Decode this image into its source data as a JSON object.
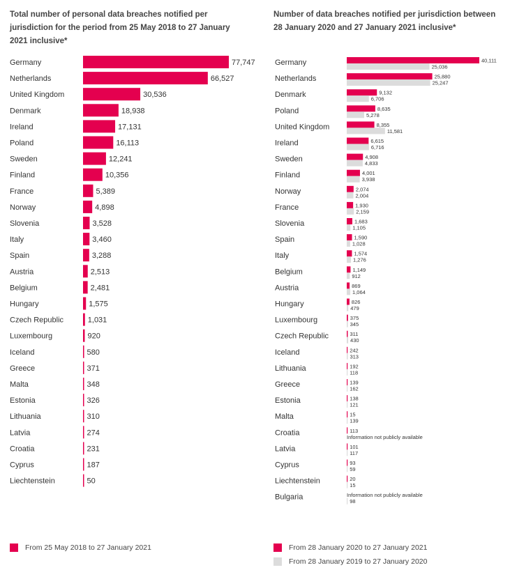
{
  "colors": {
    "pink": "#e4004f",
    "grey": "#dcdcdc",
    "text": "#333333"
  },
  "left_title": "Total number of personal data breaches notified per jurisdiction for the period from 25 May 2018 to 27 January 2021 inclusive*",
  "right_title": "Number of data breaches notified per jurisdiction between 28 January 2020 and 27 January 2021 inclusive*",
  "legend_left": "From 25 May 2018 to 27 January 2021",
  "legend_right_1": "From 28 January 2020 to 27 January 2021",
  "legend_right_2": "From 28 January 2019 to 27 January 2020",
  "chart_data": [
    {
      "type": "bar",
      "orientation": "horizontal",
      "title": "Total number of personal data breaches notified per jurisdiction for the period from 25 May 2018 to 27 January 2021 inclusive*",
      "categories": [
        "Germany",
        "Netherlands",
        "United Kingdom",
        "Denmark",
        "Ireland",
        "Poland",
        "Sweden",
        "Finland",
        "France",
        "Norway",
        "Slovenia",
        "Italy",
        "Spain",
        "Austria",
        "Belgium",
        "Hungary",
        "Czech Republic",
        "Luxembourg",
        "Iceland",
        "Greece",
        "Malta",
        "Estonia",
        "Lithuania",
        "Latvia",
        "Croatia",
        "Cyprus",
        "Liechtenstein"
      ],
      "series": [
        {
          "name": "From 25 May 2018 to 27 January 2021",
          "values": [
            77747,
            66527,
            30536,
            18938,
            17131,
            16113,
            12241,
            10356,
            5389,
            4898,
            3528,
            3460,
            3288,
            2513,
            2481,
            1575,
            1031,
            920,
            580,
            371,
            348,
            326,
            310,
            274,
            231,
            187,
            50
          ],
          "labels": [
            "77,747",
            "66,527",
            "30,536",
            "18,938",
            "17,131",
            "16,113",
            "12,241",
            "10,356",
            "5,389",
            "4,898",
            "3,528",
            "3,460",
            "3,288",
            "2,513",
            "2,481",
            "1,575",
            "1,031",
            "920",
            "580",
            "371",
            "348",
            "326",
            "310",
            "274",
            "231",
            "187",
            "50"
          ]
        }
      ],
      "xlim": [
        0,
        77747
      ]
    },
    {
      "type": "bar",
      "orientation": "horizontal",
      "title": "Number of data breaches notified per jurisdiction between 28 January 2020 and 27 January 2021 inclusive*",
      "categories": [
        "Germany",
        "Netherlands",
        "Denmark",
        "Poland",
        "United Kingdom",
        "Ireland",
        "Sweden",
        "Finland",
        "Norway",
        "France",
        "Slovenia",
        "Spain",
        "Italy",
        "Belgium",
        "Austria",
        "Hungary",
        "Luxembourg",
        "Czech Republic",
        "Iceland",
        "Lithuania",
        "Greece",
        "Estonia",
        "Malta",
        "Croatia",
        "Latvia",
        "Cyprus",
        "Liechtenstein",
        "Bulgaria"
      ],
      "series": [
        {
          "name": "From 28 January 2020 to 27 January 2021",
          "values": [
            40111,
            25880,
            9132,
            8635,
            8355,
            6615,
            4908,
            4001,
            2074,
            1930,
            1683,
            1590,
            1574,
            1149,
            869,
            826,
            375,
            311,
            242,
            192,
            139,
            138,
            15,
            113,
            101,
            93,
            20,
            null
          ],
          "labels": [
            "40,111",
            "25,880",
            "9,132",
            "8,635",
            "8,355",
            "6,615",
            "4,908",
            "4,001",
            "2,074",
            "1,930",
            "1,683",
            "1,590",
            "1,574",
            "1,149",
            "869",
            "826",
            "375",
            "311",
            "242",
            "192",
            "139",
            "138",
            "15",
            "113",
            "101",
            "93",
            "20",
            "Information not publicly available"
          ]
        },
        {
          "name": "From 28 January 2019 to 27 January 2020",
          "values": [
            25036,
            25247,
            6706,
            5278,
            11581,
            6716,
            4833,
            3938,
            2004,
            2159,
            1105,
            1028,
            1276,
            912,
            1064,
            479,
            345,
            430,
            313,
            118,
            162,
            121,
            139,
            null,
            117,
            59,
            15,
            98
          ],
          "labels": [
            "25,036",
            "25,247",
            "6,706",
            "5,278",
            "11,581",
            "6,716",
            "4,833",
            "3,938",
            "2,004",
            "2,159",
            "1,105",
            "1,028",
            "1,276",
            "912",
            "1,064",
            "479",
            "345",
            "430",
            "313",
            "118",
            "162",
            "121",
            "139",
            "Information not publicly available",
            "117",
            "59",
            "15",
            "98"
          ]
        }
      ],
      "xlim": [
        0,
        40111
      ]
    }
  ]
}
